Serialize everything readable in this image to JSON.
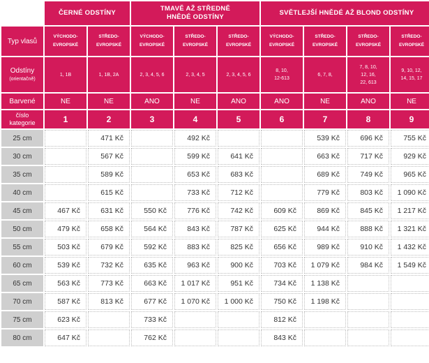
{
  "groups": [
    {
      "label": "ČERNÉ ODSTÍNY"
    },
    {
      "label": "TMAVĚ AŽ STŘEDNĚ\nHNĚDÉ ODSTÍNY"
    },
    {
      "label": "SVĚTLEJŠÍ HNĚDÉ AŽ BLOND ODSTÍNY"
    }
  ],
  "row_labels": {
    "type": "Typ vlasů",
    "shades": "Odstíny",
    "shades_note": "(orientačně)",
    "dyed": "Barvené",
    "category": "číslo\nkategorie"
  },
  "hair_types": [
    "VÝCHODO-\nEVROPSKÉ",
    "STŘEDO-\nEVROPSKÉ",
    "VÝCHODO-\nEVROPSKÉ",
    "STŘEDO-\nEVROPSKÉ",
    "STŘEDO-\nEVROPSKÉ",
    "VÝCHODO-\nEVROPSKÉ",
    "STŘEDO-\nEVROPSKÉ",
    "STŘEDO-\nEVROPSKÉ",
    "STŘEDO-\nEVROPSKÉ"
  ],
  "shades": [
    "1, 1B",
    "1, 1B, 2A",
    "2, 3, 4, 5, 6",
    "2, 3, 4, 5",
    "2, 3, 4, 5, 6",
    "8, 10,\n12-613",
    "6, 7, 8,",
    "7, 8, 10,\n12, 16,\n22, 613",
    "9, 10, 12,\n14, 15, 17"
  ],
  "dyed": [
    "NE",
    "NE",
    "ANO",
    "NE",
    "ANO",
    "ANO",
    "NE",
    "ANO",
    "NE"
  ],
  "categories": [
    "1",
    "2",
    "3",
    "4",
    "5",
    "6",
    "7",
    "8",
    "9"
  ],
  "rows": [
    {
      "length": "25 cm",
      "prices": [
        "",
        "471 Kč",
        "",
        "492 Kč",
        "",
        "",
        "539 Kč",
        "696 Kč",
        "755 Kč"
      ]
    },
    {
      "length": "30 cm",
      "prices": [
        "",
        "567 Kč",
        "",
        "599 Kč",
        "641 Kč",
        "",
        "663 Kč",
        "717 Kč",
        "929 Kč"
      ]
    },
    {
      "length": "35 cm",
      "prices": [
        "",
        "589 Kč",
        "",
        "653 Kč",
        "683 Kč",
        "",
        "689 Kč",
        "749 Kč",
        "965 Kč"
      ]
    },
    {
      "length": "40 cm",
      "prices": [
        "",
        "615 Kč",
        "",
        "733 Kč",
        "712 Kč",
        "",
        "779 Kč",
        "803 Kč",
        "1 090 Kč"
      ]
    },
    {
      "length": "45 cm",
      "prices": [
        "467 Kč",
        "631 Kč",
        "550 Kč",
        "776 Kč",
        "742 Kč",
        "609 Kč",
        "869 Kč",
        "845 Kč",
        "1 217 Kč"
      ]
    },
    {
      "length": "50 cm",
      "prices": [
        "479 Kč",
        "658 Kč",
        "564 Kč",
        "843 Kč",
        "787 Kč",
        "625 Kč",
        "944 Kč",
        "888 Kč",
        "1 321 Kč"
      ]
    },
    {
      "length": "55 cm",
      "prices": [
        "503 Kč",
        "679 Kč",
        "592 Kč",
        "883 Kč",
        "825 Kč",
        "656 Kč",
        "989 Kč",
        "910 Kč",
        "1 432 Kč"
      ]
    },
    {
      "length": "60 cm",
      "prices": [
        "539 Kč",
        "732 Kč",
        "635 Kč",
        "963 Kč",
        "900 Kč",
        "703 Kč",
        "1 079 Kč",
        "984 Kč",
        "1 549 Kč"
      ]
    },
    {
      "length": "65 cm",
      "prices": [
        "563 Kč",
        "773 Kč",
        "663 Kč",
        "1 017 Kč",
        "951 Kč",
        "734 Kč",
        "1 138 Kč",
        "",
        ""
      ]
    },
    {
      "length": "70 cm",
      "prices": [
        "587 Kč",
        "813 Kč",
        "677 Kč",
        "1 070 Kč",
        "1 000 Kč",
        "750 Kč",
        "1 198 Kč",
        "",
        ""
      ]
    },
    {
      "length": "75 cm",
      "prices": [
        "623 Kč",
        "",
        "733 Kč",
        "",
        "",
        "812 Kč",
        "",
        "",
        ""
      ]
    },
    {
      "length": "80 cm",
      "prices": [
        "647 Kč",
        "",
        "762 Kč",
        "",
        "",
        "843 Kč",
        "",
        "",
        ""
      ]
    }
  ]
}
